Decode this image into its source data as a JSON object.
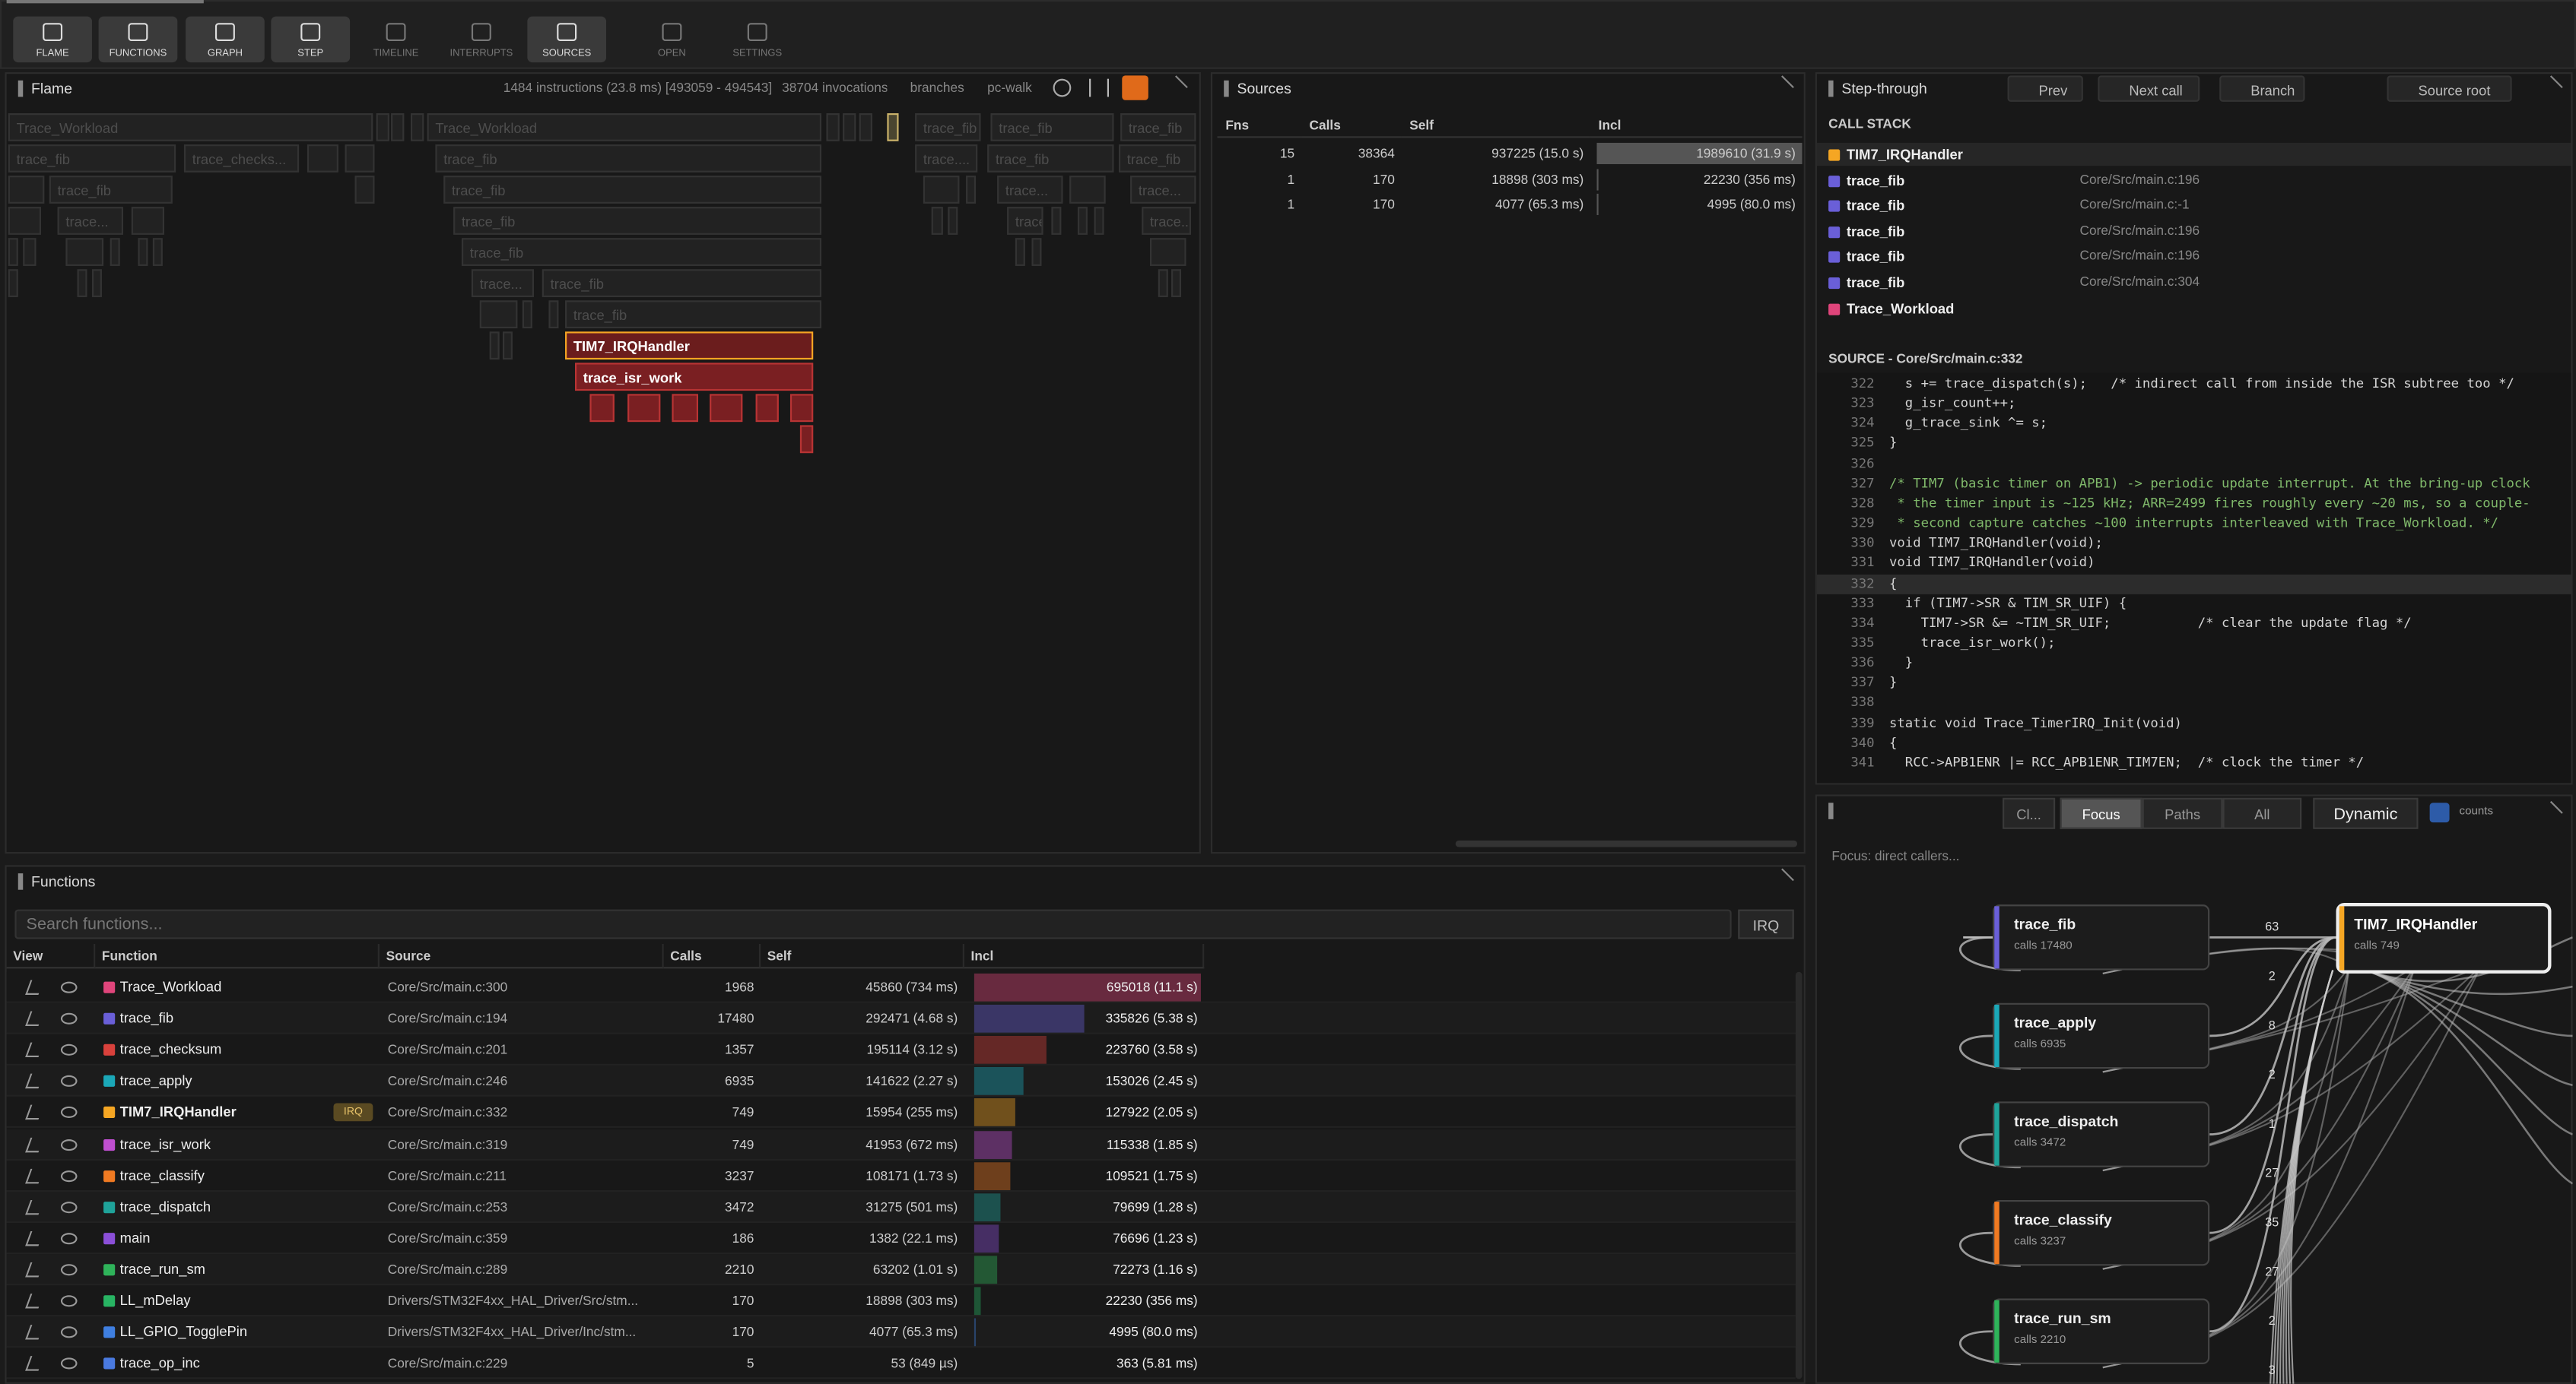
{
  "toolbar": [
    "FLAME",
    "FUNCTIONS",
    "GRAPH",
    "STEP",
    "TIMELINE",
    "INTERRUPTS",
    "SOURCES",
    "OPEN",
    "SETTINGS"
  ],
  "flame": {
    "title": "Flame",
    "summary": "1484 instructions (23.8 ms) [493059 - 494543]",
    "invocations": "38704 invocations",
    "branches": "branches",
    "pc_walk": "pc-walk",
    "blocks": [
      "Trace_Workload",
      "Trace_Workload",
      "trace_fib",
      "trace_fib",
      "trace_fib",
      "trace_fib",
      "trace_checks...",
      "trace_fib",
      "trace....",
      "trace_fib",
      "trace_fib",
      "trace_fib",
      "trace_fib",
      "trace...",
      "trace...",
      "trace...",
      "trace_fib",
      "trace...",
      "trace...",
      "trace_fib",
      "trace...",
      "trace_fib",
      "trace_fib",
      "TIM7_IRQHandler",
      "trace_isr_work"
    ]
  },
  "sources": {
    "title": "Sources",
    "columns": [
      "Fns",
      "Calls",
      "Self",
      "Incl"
    ],
    "rows": [
      [
        "15",
        "38364",
        "937225 (15.0 s)",
        "1989610 (31.9 s)"
      ],
      [
        "1",
        "170",
        "18898 (303 ms)",
        "22230 (356 ms)"
      ],
      [
        "1",
        "170",
        "4077 (65.3 ms)",
        "4995 (80.0 ms)"
      ]
    ]
  },
  "step": {
    "title": "Step-through",
    "buttons": [
      "Prev",
      "Next call",
      "Branch",
      "Source root"
    ],
    "call_stack_title": "CALL STACK",
    "call_stack": [
      {
        "name": "TIM7_IRQHandler",
        "color": "#f5a623"
      },
      {
        "name": "trace_fib",
        "location": "Core/Src/main.c:196",
        "color": "#6a5fd8"
      },
      {
        "name": "trace_fib",
        "location": "Core/Src/main.c:-1",
        "color": "#6a5fd8"
      },
      {
        "name": "trace_fib",
        "location": "Core/Src/main.c:196",
        "color": "#6a5fd8"
      },
      {
        "name": "trace_fib",
        "location": "Core/Src/main.c:196",
        "color": "#6a5fd8"
      },
      {
        "name": "trace_fib",
        "location": "Core/Src/main.c:304",
        "color": "#6a5fd8"
      },
      {
        "name": "Trace_Workload",
        "color": "#e0457b"
      }
    ],
    "source_title": "SOURCE  -  Core/Src/main.c:332",
    "current_line": 332,
    "code": [
      {
        "n": 322,
        "text": "  s += trace_dispatch(s);   /* indirect call from inside the ISR subtree too */"
      },
      {
        "n": 323,
        "text": "  g_isr_count++;"
      },
      {
        "n": 324,
        "text": "  g_trace_sink ^= s;"
      },
      {
        "n": 325,
        "text": "}"
      },
      {
        "n": 326
      },
      {
        "n": 327,
        "text": "/* TIM7 (basic timer on APB1) -> periodic update interrupt. At the bring-up clock"
      },
      {
        "n": 328,
        "text": " * the timer input is ~125 kHz; ARR=2499 fires roughly every ~20 ms, so a couple-"
      },
      {
        "n": 329,
        "text": " * second capture catches ~100 interrupts interleaved with Trace_Workload. */"
      },
      {
        "n": 330,
        "text": "void TIM7_IRQHandler(void);"
      },
      {
        "n": 331,
        "text": "void TIM7_IRQHandler(void)"
      },
      {
        "n": 332,
        "text": "{"
      },
      {
        "n": 333,
        "text": "  if (TIM7->SR & TIM_SR_UIF) {"
      },
      {
        "n": 334,
        "text": "    TIM7->SR &= ~TIM_SR_UIF;           /* clear the update flag */"
      },
      {
        "n": 335,
        "text": "    trace_isr_work();"
      },
      {
        "n": 336,
        "text": "  }"
      },
      {
        "n": 337,
        "text": "}"
      },
      {
        "n": 338
      },
      {
        "n": 339,
        "text": "static void Trace_TimerIRQ_Init(void)"
      },
      {
        "n": 340,
        "text": "{"
      },
      {
        "n": 341,
        "text": "  RCC->APB1ENR |= RCC_APB1ENR_TIM7EN;  /* clock the timer */"
      }
    ]
  },
  "graph": {
    "buttons": [
      "Cl...",
      "Focus",
      "Paths",
      "All"
    ],
    "mode": "Dynamic",
    "counts": "counts",
    "hint": "Focus: direct callers...",
    "target": {
      "name": "TIM7_IRQHandler",
      "calls": "calls 749",
      "color": "#f5a623"
    },
    "callers": [
      {
        "name": "trace_fib",
        "calls": "calls 17480",
        "color": "#6a5fd8"
      },
      {
        "name": "trace_apply",
        "calls": "calls 6935",
        "color": "#1ba8b8"
      },
      {
        "name": "trace_dispatch",
        "calls": "calls 3472",
        "color": "#1fa39a"
      },
      {
        "name": "trace_classify",
        "calls": "calls 3237",
        "color": "#f07a22"
      },
      {
        "name": "trace_run_sm",
        "calls": "calls 2210",
        "color": "#2fb35a"
      }
    ],
    "edge_labels": [
      "63",
      "2",
      "8",
      "2",
      "1",
      "27",
      "35",
      "27",
      "2",
      "3"
    ]
  },
  "functions": {
    "title": "Functions",
    "search_placeholder": "Search functions...",
    "filter": "IRQ",
    "columns": [
      "View",
      "Function",
      "Source",
      "Calls",
      "Self",
      "Incl"
    ],
    "rows": [
      {
        "name": "Trace_Workload",
        "color": "#e0457b",
        "source": "Core/Src/main.c:300",
        "calls": "1968",
        "self": "45860 (734 ms)",
        "incl": "695018 (11.1 s)"
      },
      {
        "name": "trace_fib",
        "color": "#6a5fd8",
        "source": "Core/Src/main.c:194",
        "calls": "17480",
        "self": "292471 (4.68 s)",
        "incl": "335826 (5.38 s)"
      },
      {
        "name": "trace_checksum",
        "color": "#d9413c",
        "source": "Core/Src/main.c:201",
        "calls": "1357",
        "self": "195114 (3.12 s)",
        "incl": "223760 (3.58 s)"
      },
      {
        "name": "trace_apply",
        "color": "#1ba8b8",
        "source": "Core/Src/main.c:246",
        "calls": "6935",
        "self": "141622 (2.27 s)",
        "incl": "153026 (2.45 s)"
      },
      {
        "name": "TIM7_IRQHandler",
        "color": "#f5a623",
        "badge": "IRQ",
        "source": "Core/Src/main.c:332",
        "calls": "749",
        "self": "15954 (255 ms)",
        "incl": "127922 (2.05 s)"
      },
      {
        "name": "trace_isr_work",
        "color": "#c04fd1",
        "source": "Core/Src/main.c:319",
        "calls": "749",
        "self": "41953 (672 ms)",
        "incl": "115338 (1.85 s)"
      },
      {
        "name": "trace_classify",
        "color": "#f07a22",
        "source": "Core/Src/main.c:211",
        "calls": "3237",
        "self": "108171 (1.73 s)",
        "incl": "109521 (1.75 s)"
      },
      {
        "name": "trace_dispatch",
        "color": "#1fa39a",
        "source": "Core/Src/main.c:253",
        "calls": "3472",
        "self": "31275 (501 ms)",
        "incl": "79699 (1.28 s)"
      },
      {
        "name": "main",
        "color": "#8b4fd8",
        "source": "Core/Src/main.c:359",
        "calls": "186",
        "self": "1382 (22.1 ms)",
        "incl": "76696 (1.23 s)"
      },
      {
        "name": "trace_run_sm",
        "color": "#2fb35a",
        "source": "Core/Src/main.c:289",
        "calls": "2210",
        "self": "63202 (1.01 s)",
        "incl": "72273 (1.16 s)"
      },
      {
        "name": "LL_mDelay",
        "color": "#28b463",
        "source": "Drivers/STM32F4xx_HAL_Driver/Src/stm...",
        "calls": "170",
        "self": "18898 (303 ms)",
        "incl": "22230 (356 ms)"
      },
      {
        "name": "LL_GPIO_TogglePin",
        "color": "#3f7fe0",
        "source": "Drivers/STM32F4xx_HAL_Driver/Inc/stm...",
        "calls": "170",
        "self": "4077 (65.3 ms)",
        "incl": "4995 (80.0 ms)"
      },
      {
        "name": "trace_op_inc",
        "color": "#4a7ae0",
        "source": "Core/Src/main.c:229",
        "calls": "5",
        "self": "53 (849 µs)",
        "incl": "363 (5.81 ms)"
      }
    ]
  }
}
